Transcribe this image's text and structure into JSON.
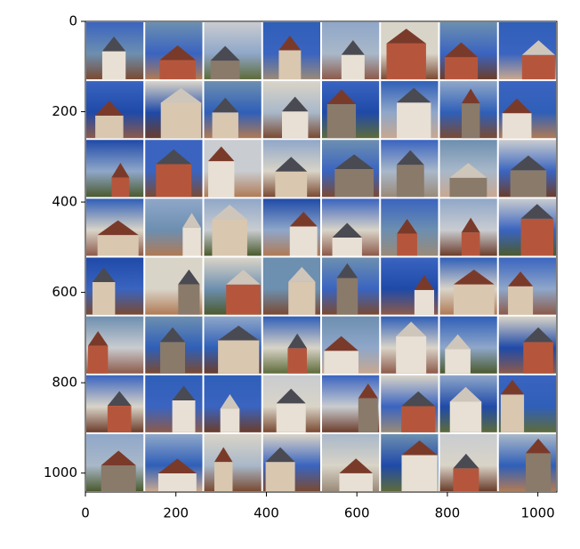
{
  "chart_data": {
    "type": "image",
    "xlim": [
      0,
      1042
    ],
    "ylim": [
      1042,
      0
    ],
    "xticks": [
      0,
      200,
      400,
      600,
      800,
      1000
    ],
    "yticks": [
      0,
      200,
      400,
      600,
      800,
      1000
    ]
  }
}
